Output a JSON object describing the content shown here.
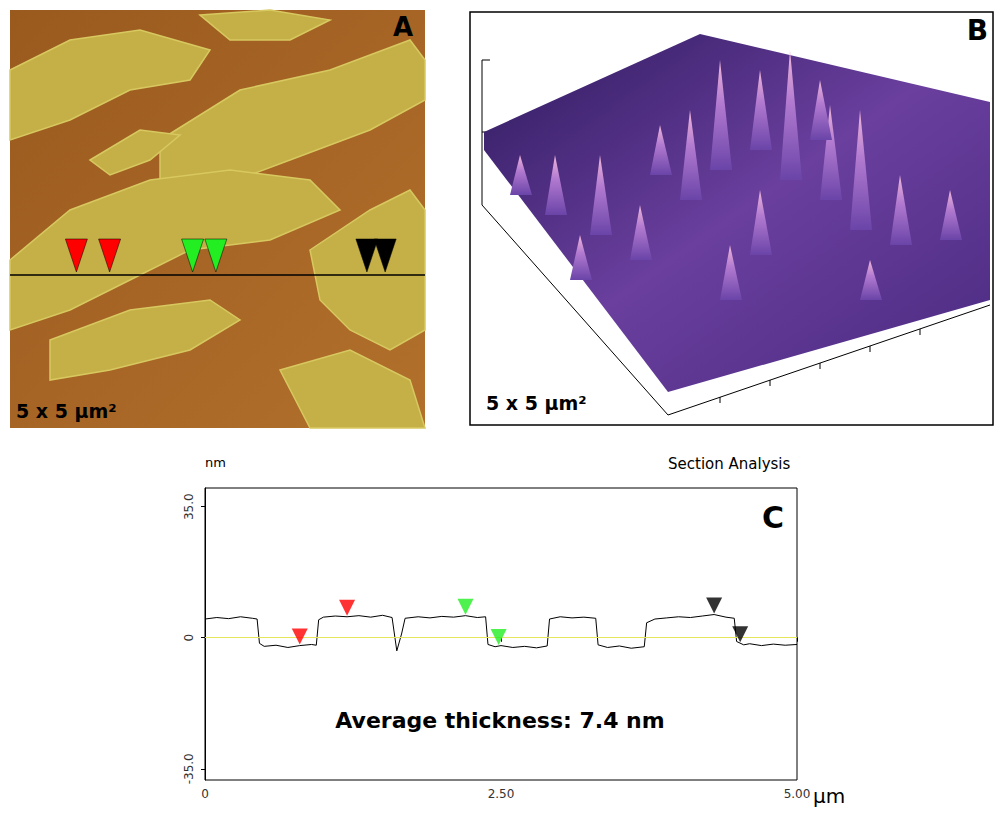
{
  "panels": [
    {
      "label": "A",
      "scale_text": "5 x 5 μm²",
      "type": "image"
    },
    {
      "label": "B",
      "scale_text": "5 x 5 μm²",
      "type": "surface"
    }
  ],
  "chart_data": {
    "type": "line",
    "panel_label": "C",
    "title": "Section Analysis",
    "ylabel": "nm",
    "xlabel": "μm",
    "annotation": "Average thickness: 7.4 nm",
    "color": "#000000",
    "x": [
      0,
      0.1,
      0.2,
      0.3,
      0.4,
      0.44,
      0.46,
      0.5,
      0.6,
      0.7,
      0.8,
      0.9,
      0.94,
      0.96,
      1.0,
      1.1,
      1.2,
      1.3,
      1.4,
      1.5,
      1.58,
      1.62,
      1.66,
      1.69,
      1.8,
      1.9,
      2.0,
      2.1,
      2.2,
      2.3,
      2.37,
      2.39,
      2.45,
      2.5,
      2.6,
      2.7,
      2.8,
      2.89,
      2.91,
      3.0,
      3.1,
      3.2,
      3.3,
      3.32,
      3.4,
      3.5,
      3.6,
      3.71,
      3.73,
      3.8,
      3.9,
      4.0,
      4.1,
      4.2,
      4.3,
      4.4,
      4.47,
      4.49,
      4.55,
      4.6,
      4.7,
      4.8,
      4.9,
      5.0
    ],
    "values": [
      5.0,
      5.4,
      5.1,
      5.6,
      5.2,
      5.0,
      -1.5,
      -2.3,
      -2.0,
      -2.6,
      -2.1,
      -1.8,
      -2.0,
      4.8,
      5.5,
      5.8,
      5.6,
      5.9,
      5.5,
      6.0,
      5.4,
      -3.5,
      1.0,
      5.2,
      5.6,
      5.3,
      5.7,
      5.5,
      5.9,
      5.4,
      5.6,
      -1.8,
      -2.4,
      -2.1,
      -2.6,
      -2.3,
      -2.7,
      -2.2,
      5.0,
      5.6,
      5.3,
      5.5,
      5.2,
      -1.9,
      -2.6,
      -2.2,
      -2.8,
      -2.4,
      4.0,
      5.0,
      5.3,
      5.6,
      5.4,
      5.8,
      6.2,
      5.5,
      5.2,
      -1.0,
      -1.9,
      -1.6,
      -2.1,
      -1.7,
      -2.0,
      -1.8
    ],
    "xlim": [
      0,
      5
    ],
    "xticks": [
      0,
      {
        "value": 2.5,
        "label": "2.50"
      },
      {
        "value": 5,
        "label": "5.00"
      }
    ],
    "ylim": [
      -38,
      40
    ],
    "yticks": [
      {
        "value": -35,
        "label": "-35.0"
      },
      0,
      {
        "value": 35,
        "label": "35.0"
      }
    ],
    "grid": false,
    "baseline": {
      "value": 0,
      "color": "#e6e65c"
    },
    "markers": [
      {
        "color": "#ff0000",
        "x": 0.8,
        "y": -2.1
      },
      {
        "color": "#ff0000",
        "x": 1.2,
        "y": 5.6
      },
      {
        "color": "#22ee22",
        "x": 2.2,
        "y": 5.9
      },
      {
        "color": "#22ee22",
        "x": 2.48,
        "y": -2.2
      },
      {
        "color": "#000000",
        "x": 4.3,
        "y": 6.2
      },
      {
        "color": "#000000",
        "x": 4.52,
        "y": -1.5
      }
    ]
  }
}
